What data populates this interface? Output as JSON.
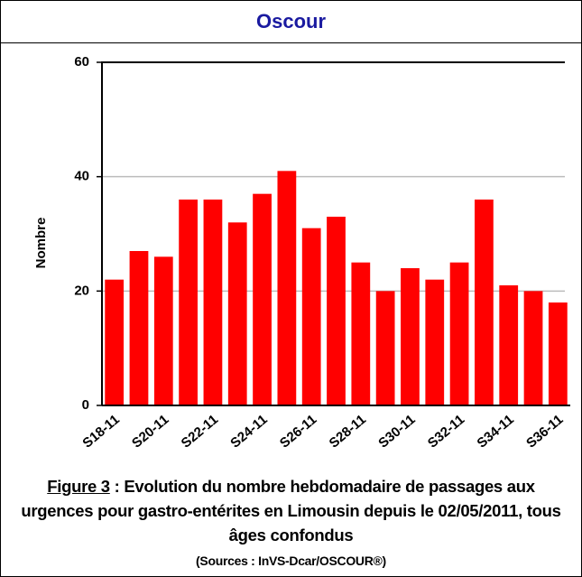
{
  "header": {
    "title": "Oscour"
  },
  "chart_data": {
    "type": "bar",
    "y_label": "Nombre",
    "categories": [
      "S18-11",
      null,
      "S20-11",
      null,
      "S22-11",
      null,
      "S24-11",
      null,
      "S26-11",
      null,
      "S28-11",
      null,
      "S30-11",
      null,
      "S32-11",
      null,
      "S34-11",
      null,
      "S36-11"
    ],
    "values": [
      22,
      27,
      26,
      36,
      36,
      32,
      37,
      41,
      31,
      33,
      25,
      20,
      24,
      22,
      25,
      36,
      21,
      20,
      18
    ],
    "color": "#ff0000",
    "ylim": [
      0,
      60
    ],
    "yticks": [
      0,
      20,
      40,
      60
    ],
    "grid": true
  },
  "caption": {
    "figure_label": "Figure 3",
    "text": " : Evolution du nombre hebdomadaire de passages aux urgences pour gastro-entérites en Limousin depuis le 02/05/2011, tous âges confondus",
    "source": "(Sources : InVS-Dcar/OSCOUR®)"
  }
}
